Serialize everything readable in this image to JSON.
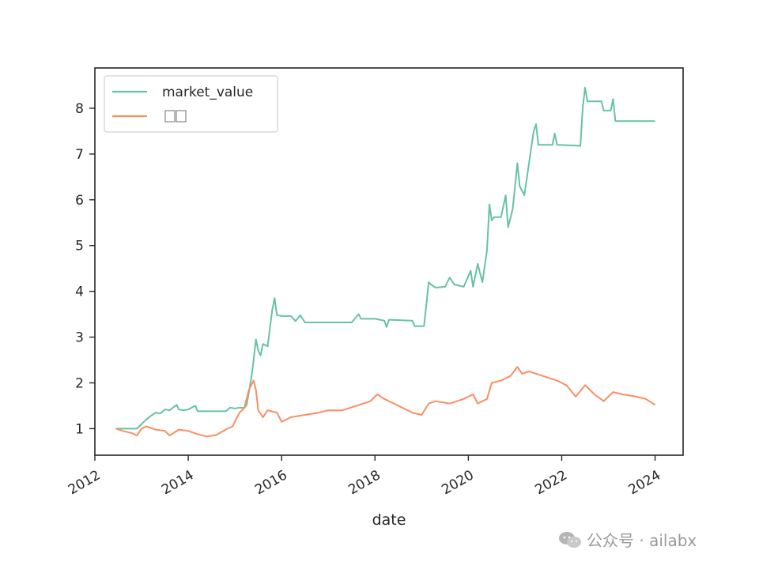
{
  "chart_data": {
    "type": "line",
    "title": "",
    "xlabel": "date",
    "ylabel": "",
    "x_axis": "date",
    "xlim": [
      2012.0,
      2024.6
    ],
    "ylim": [
      0.42,
      8.88
    ],
    "x_ticks": [
      2012,
      2014,
      2016,
      2018,
      2020,
      2022,
      2024
    ],
    "y_ticks": [
      1,
      2,
      3,
      4,
      5,
      6,
      7,
      8
    ],
    "grid": false,
    "legend_position": "upper left",
    "series": [
      {
        "name": "market_value",
        "color": "#66c2a5",
        "points": [
          [
            2012.45,
            1.0
          ],
          [
            2012.9,
            1.0
          ],
          [
            2013.0,
            1.1
          ],
          [
            2013.1,
            1.2
          ],
          [
            2013.2,
            1.28
          ],
          [
            2013.3,
            1.35
          ],
          [
            2013.4,
            1.33
          ],
          [
            2013.5,
            1.42
          ],
          [
            2013.6,
            1.4
          ],
          [
            2013.75,
            1.52
          ],
          [
            2013.8,
            1.42
          ],
          [
            2013.9,
            1.4
          ],
          [
            2014.0,
            1.42
          ],
          [
            2014.15,
            1.5
          ],
          [
            2014.2,
            1.38
          ],
          [
            2014.5,
            1.38
          ],
          [
            2014.8,
            1.38
          ],
          [
            2014.9,
            1.46
          ],
          [
            2015.0,
            1.44
          ],
          [
            2015.1,
            1.46
          ],
          [
            2015.2,
            1.45
          ],
          [
            2015.25,
            1.52
          ],
          [
            2015.3,
            1.8
          ],
          [
            2015.35,
            2.1
          ],
          [
            2015.4,
            2.5
          ],
          [
            2015.45,
            2.95
          ],
          [
            2015.5,
            2.7
          ],
          [
            2015.55,
            2.6
          ],
          [
            2015.6,
            2.85
          ],
          [
            2015.7,
            2.8
          ],
          [
            2015.75,
            3.2
          ],
          [
            2015.8,
            3.6
          ],
          [
            2015.85,
            3.85
          ],
          [
            2015.9,
            3.48
          ],
          [
            2016.0,
            3.46
          ],
          [
            2016.2,
            3.46
          ],
          [
            2016.3,
            3.35
          ],
          [
            2016.4,
            3.48
          ],
          [
            2016.5,
            3.32
          ],
          [
            2017.0,
            3.32
          ],
          [
            2017.5,
            3.32
          ],
          [
            2017.65,
            3.5
          ],
          [
            2017.7,
            3.4
          ],
          [
            2018.0,
            3.4
          ],
          [
            2018.2,
            3.36
          ],
          [
            2018.25,
            3.22
          ],
          [
            2018.3,
            3.38
          ],
          [
            2018.8,
            3.36
          ],
          [
            2018.85,
            3.24
          ],
          [
            2019.05,
            3.24
          ],
          [
            2019.1,
            3.7
          ],
          [
            2019.15,
            4.2
          ],
          [
            2019.2,
            4.15
          ],
          [
            2019.3,
            4.08
          ],
          [
            2019.5,
            4.1
          ],
          [
            2019.6,
            4.3
          ],
          [
            2019.7,
            4.15
          ],
          [
            2019.9,
            4.1
          ],
          [
            2020.05,
            4.45
          ],
          [
            2020.1,
            4.1
          ],
          [
            2020.2,
            4.6
          ],
          [
            2020.3,
            4.2
          ],
          [
            2020.4,
            4.9
          ],
          [
            2020.45,
            5.9
          ],
          [
            2020.5,
            5.55
          ],
          [
            2020.55,
            5.62
          ],
          [
            2020.7,
            5.62
          ],
          [
            2020.8,
            6.1
          ],
          [
            2020.85,
            5.4
          ],
          [
            2020.95,
            5.8
          ],
          [
            2021.05,
            6.8
          ],
          [
            2021.1,
            6.3
          ],
          [
            2021.2,
            6.1
          ],
          [
            2021.3,
            6.8
          ],
          [
            2021.4,
            7.5
          ],
          [
            2021.45,
            7.65
          ],
          [
            2021.5,
            7.2
          ],
          [
            2021.8,
            7.2
          ],
          [
            2021.85,
            7.45
          ],
          [
            2021.9,
            7.2
          ],
          [
            2022.4,
            7.18
          ],
          [
            2022.45,
            8.0
          ],
          [
            2022.5,
            8.45
          ],
          [
            2022.55,
            8.15
          ],
          [
            2022.85,
            8.15
          ],
          [
            2022.9,
            7.95
          ],
          [
            2023.05,
            7.95
          ],
          [
            2023.1,
            8.2
          ],
          [
            2023.15,
            7.72
          ],
          [
            2023.5,
            7.72
          ],
          [
            2024.0,
            7.72
          ]
        ]
      },
      {
        "name": "",
        "color": "#fc8d62",
        "points": [
          [
            2012.45,
            1.0
          ],
          [
            2012.6,
            0.95
          ],
          [
            2012.8,
            0.9
          ],
          [
            2012.9,
            0.85
          ],
          [
            2013.0,
            1.0
          ],
          [
            2013.1,
            1.05
          ],
          [
            2013.3,
            0.98
          ],
          [
            2013.5,
            0.95
          ],
          [
            2013.6,
            0.85
          ],
          [
            2013.8,
            0.98
          ],
          [
            2014.0,
            0.95
          ],
          [
            2014.2,
            0.88
          ],
          [
            2014.4,
            0.83
          ],
          [
            2014.6,
            0.86
          ],
          [
            2014.8,
            0.98
          ],
          [
            2014.95,
            1.05
          ],
          [
            2015.1,
            1.35
          ],
          [
            2015.2,
            1.45
          ],
          [
            2015.3,
            1.85
          ],
          [
            2015.4,
            2.05
          ],
          [
            2015.45,
            1.85
          ],
          [
            2015.5,
            1.4
          ],
          [
            2015.6,
            1.25
          ],
          [
            2015.7,
            1.4
          ],
          [
            2015.9,
            1.35
          ],
          [
            2016.0,
            1.15
          ],
          [
            2016.2,
            1.25
          ],
          [
            2016.5,
            1.3
          ],
          [
            2016.8,
            1.35
          ],
          [
            2017.0,
            1.4
          ],
          [
            2017.3,
            1.4
          ],
          [
            2017.6,
            1.5
          ],
          [
            2017.9,
            1.6
          ],
          [
            2018.05,
            1.75
          ],
          [
            2018.2,
            1.65
          ],
          [
            2018.5,
            1.5
          ],
          [
            2018.8,
            1.35
          ],
          [
            2019.0,
            1.3
          ],
          [
            2019.15,
            1.55
          ],
          [
            2019.3,
            1.6
          ],
          [
            2019.6,
            1.55
          ],
          [
            2019.9,
            1.65
          ],
          [
            2020.1,
            1.75
          ],
          [
            2020.2,
            1.55
          ],
          [
            2020.4,
            1.65
          ],
          [
            2020.5,
            2.0
          ],
          [
            2020.7,
            2.05
          ],
          [
            2020.9,
            2.15
          ],
          [
            2021.05,
            2.35
          ],
          [
            2021.15,
            2.2
          ],
          [
            2021.3,
            2.25
          ],
          [
            2021.6,
            2.15
          ],
          [
            2021.9,
            2.05
          ],
          [
            2022.1,
            1.95
          ],
          [
            2022.3,
            1.7
          ],
          [
            2022.5,
            1.95
          ],
          [
            2022.7,
            1.75
          ],
          [
            2022.9,
            1.6
          ],
          [
            2023.1,
            1.8
          ],
          [
            2023.3,
            1.75
          ],
          [
            2023.6,
            1.7
          ],
          [
            2023.8,
            1.65
          ],
          [
            2024.0,
            1.52
          ]
        ]
      }
    ]
  },
  "watermark": {
    "text": "公众号 · ailabx",
    "icon": "wechat-icon",
    "color": "#9a9a9a"
  }
}
